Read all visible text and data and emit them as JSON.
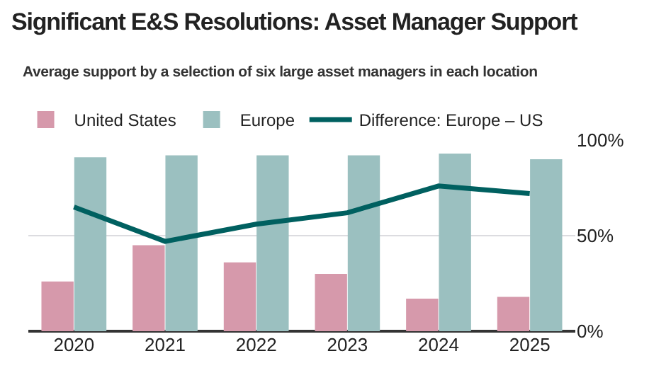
{
  "chart_data": {
    "type": "bar",
    "title": "Significant E&S Resolutions: Asset Manager Support",
    "subtitle": "Average support by a selection of six large asset managers in each location",
    "categories": [
      "2020",
      "2021",
      "2022",
      "2023",
      "2024",
      "2025"
    ],
    "series": [
      {
        "name": "United States",
        "color": "#d699ab",
        "values": [
          26,
          45,
          36,
          30,
          17,
          18
        ]
      },
      {
        "name": "Europe",
        "color": "#9bc0c0",
        "values": [
          91,
          92,
          92,
          92,
          93,
          90
        ]
      },
      {
        "name": "Difference: Europe – US",
        "type": "line",
        "color": "#006060",
        "values": [
          65,
          47,
          56,
          62,
          76,
          72
        ]
      }
    ],
    "ylim": [
      0,
      100
    ],
    "yticks": [
      {
        "value": 0,
        "label": "0%"
      },
      {
        "value": 50,
        "label": "50%"
      },
      {
        "value": 100,
        "label": "100%"
      }
    ],
    "grid": "y",
    "legend": "top"
  }
}
